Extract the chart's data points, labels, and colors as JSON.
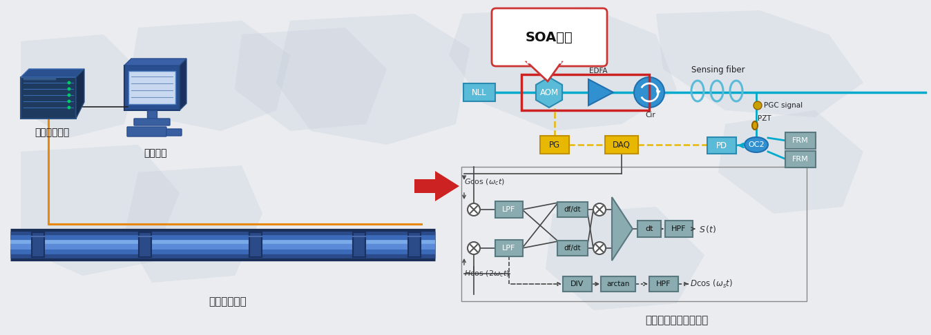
{
  "title_left": "光纤感知系统",
  "title_right": "光纤感知系统内部光路",
  "label_host": "光纤传感主机",
  "label_monitor": "监测平台",
  "soa_label": "SOA替代",
  "bg_color": "#eaecf0",
  "fiber_color": "#3a5fa0",
  "orange_line": "#e8880a",
  "yellow_box": "#e8b800",
  "cyan_box": "#5abbd8",
  "red_border": "#cc2222",
  "gray_box": "#8aabb0",
  "signal_line": "#00aacc",
  "dark_blue": "#1e3a5f",
  "mid_blue": "#3090d0"
}
